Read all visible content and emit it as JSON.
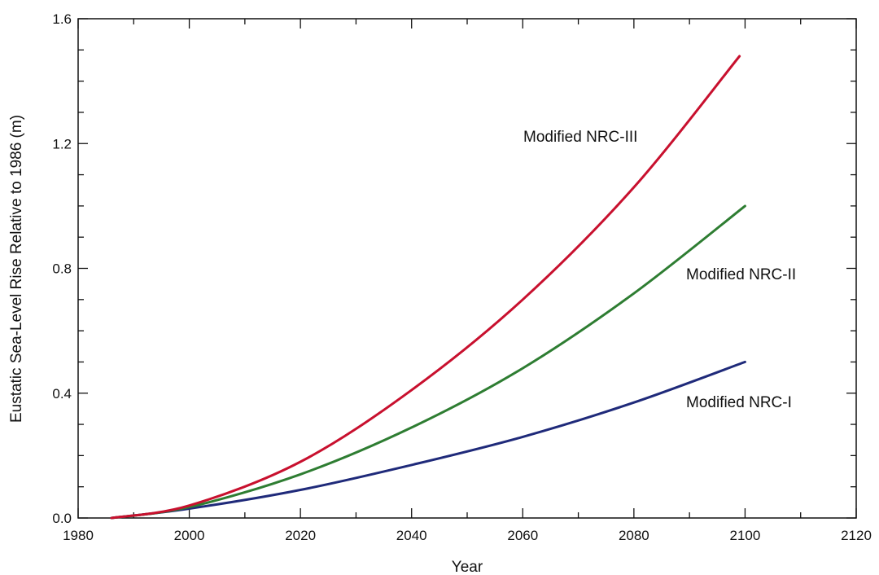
{
  "chart_data": {
    "type": "line",
    "title": "",
    "xlabel": "Year",
    "ylabel": "Eustatic Sea-Level Rise Relative to 1986 (m)",
    "xlim": [
      1980,
      2120
    ],
    "ylim": [
      0.0,
      1.6
    ],
    "x_ticks": [
      "1980",
      "2000",
      "2020",
      "2040",
      "2060",
      "2080",
      "2100",
      "2120"
    ],
    "y_ticks": [
      "0.0",
      "0.4",
      "0.8",
      "1.2",
      "1.6"
    ],
    "grid": false,
    "legend": "none",
    "series": [
      {
        "name": "Modified NRC-I",
        "color": "#1f2a7a",
        "x": [
          1986,
          2000,
          2020,
          2040,
          2060,
          2080,
          2100
        ],
        "y": [
          0.0,
          0.03,
          0.09,
          0.17,
          0.26,
          0.37,
          0.5
        ]
      },
      {
        "name": "Modified NRC-II",
        "color": "#2e7d32",
        "x": [
          1986,
          2000,
          2020,
          2040,
          2060,
          2080,
          2100
        ],
        "y": [
          0.0,
          0.035,
          0.14,
          0.29,
          0.48,
          0.72,
          1.0
        ]
      },
      {
        "name": "Modified NRC-III",
        "color": "#c8102e",
        "x": [
          1986,
          2000,
          2020,
          2040,
          2060,
          2080,
          2099
        ],
        "y": [
          0.0,
          0.04,
          0.18,
          0.41,
          0.7,
          1.06,
          1.48
        ]
      }
    ]
  }
}
